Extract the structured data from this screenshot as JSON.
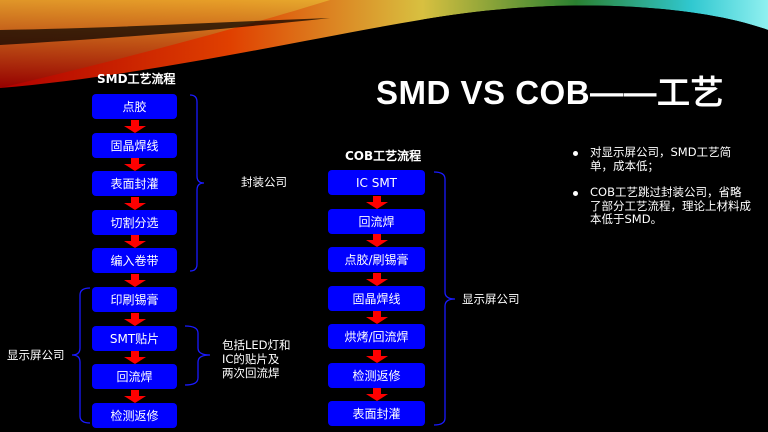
{
  "title": "SMD VS COB——工艺",
  "smd": {
    "title": "SMD工艺流程",
    "steps": [
      "点胶",
      "固晶焊线",
      "表面封灌",
      "切割分选",
      "编入卷带",
      "印刷锡膏",
      "SMT贴片",
      "回流焊",
      "检测返修"
    ],
    "labels": {
      "package": "封装公司",
      "display": "显示屏公司",
      "smt_note": [
        "包括LED灯和",
        "IC的贴片及",
        "两次回流焊"
      ]
    }
  },
  "cob": {
    "title": "COB工艺流程",
    "steps": [
      "IC SMT",
      "回流焊",
      "点胶/刷锡膏",
      "固晶焊线",
      "烘烤/回流焊",
      "检测返修",
      "表面封灌"
    ],
    "label": "显示屏公司"
  },
  "bullets": [
    "对显示屏公司，SMD工艺简单，成本低；",
    "COB工艺跳过封装公司，省略了部分工艺流程，理论上材料成本低于SMD。"
  ],
  "colors": {
    "box": "#0000ff",
    "arrow": "#ff0000",
    "bracket": "#1a1aff",
    "background": "#000000"
  }
}
